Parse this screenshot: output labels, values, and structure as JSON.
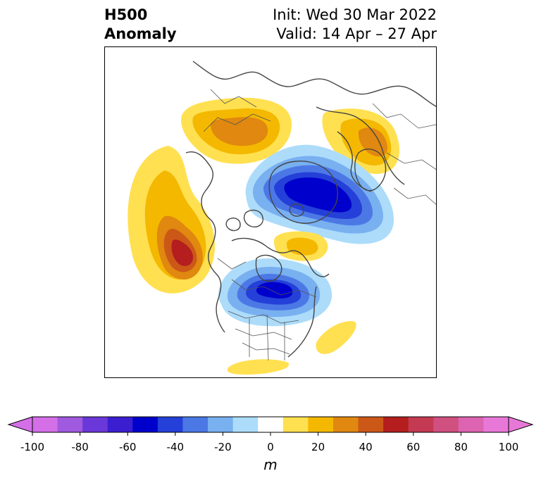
{
  "title": {
    "left_line1": "H500",
    "left_line2": "Anomaly",
    "right_line1": "Init: Wed 30 Mar 2022",
    "right_line2": "Valid: 14 Apr – 27 Apr"
  },
  "colorbar": {
    "unit": "m",
    "ticks": [
      "-100",
      "-80",
      "-60",
      "-40",
      "-20",
      "0",
      "20",
      "40",
      "60",
      "80",
      "100"
    ],
    "colors": [
      "#d46fe8",
      "#a05ae0",
      "#6a38d8",
      "#3a1ed0",
      "#0000cc",
      "#2440d8",
      "#4c78e6",
      "#78b0f0",
      "#acdcfa",
      "#ffffff",
      "#ffe050",
      "#f4b800",
      "#e08810",
      "#cc5818",
      "#b41e1e",
      "#c43a52",
      "#d05080",
      "#dc64b0",
      "#e878d8"
    ],
    "extend_low_color": "#d46fe8",
    "extend_high_color": "#e878d8"
  },
  "map": {
    "projection": "north-polar-stereographic",
    "features": [
      "coastlines",
      "country-borders",
      "state-province-borders"
    ],
    "anomaly_centers": [
      {
        "region": "North Pacific / Gulf of Alaska",
        "sign": "positive",
        "peak_m": 70
      },
      {
        "region": "Hudson Bay / eastern Canada",
        "sign": "negative",
        "peak_m": -60
      },
      {
        "region": "Arctic Ocean / Greenland side",
        "sign": "negative",
        "peak_m": -60
      },
      {
        "region": "Eastern Siberia",
        "sign": "positive",
        "peak_m": 40
      },
      {
        "region": "Northern Europe / Scandinavia",
        "sign": "positive",
        "peak_m": 40
      },
      {
        "region": "North Atlantic / Greenland south",
        "sign": "positive",
        "peak_m": 30
      }
    ]
  }
}
